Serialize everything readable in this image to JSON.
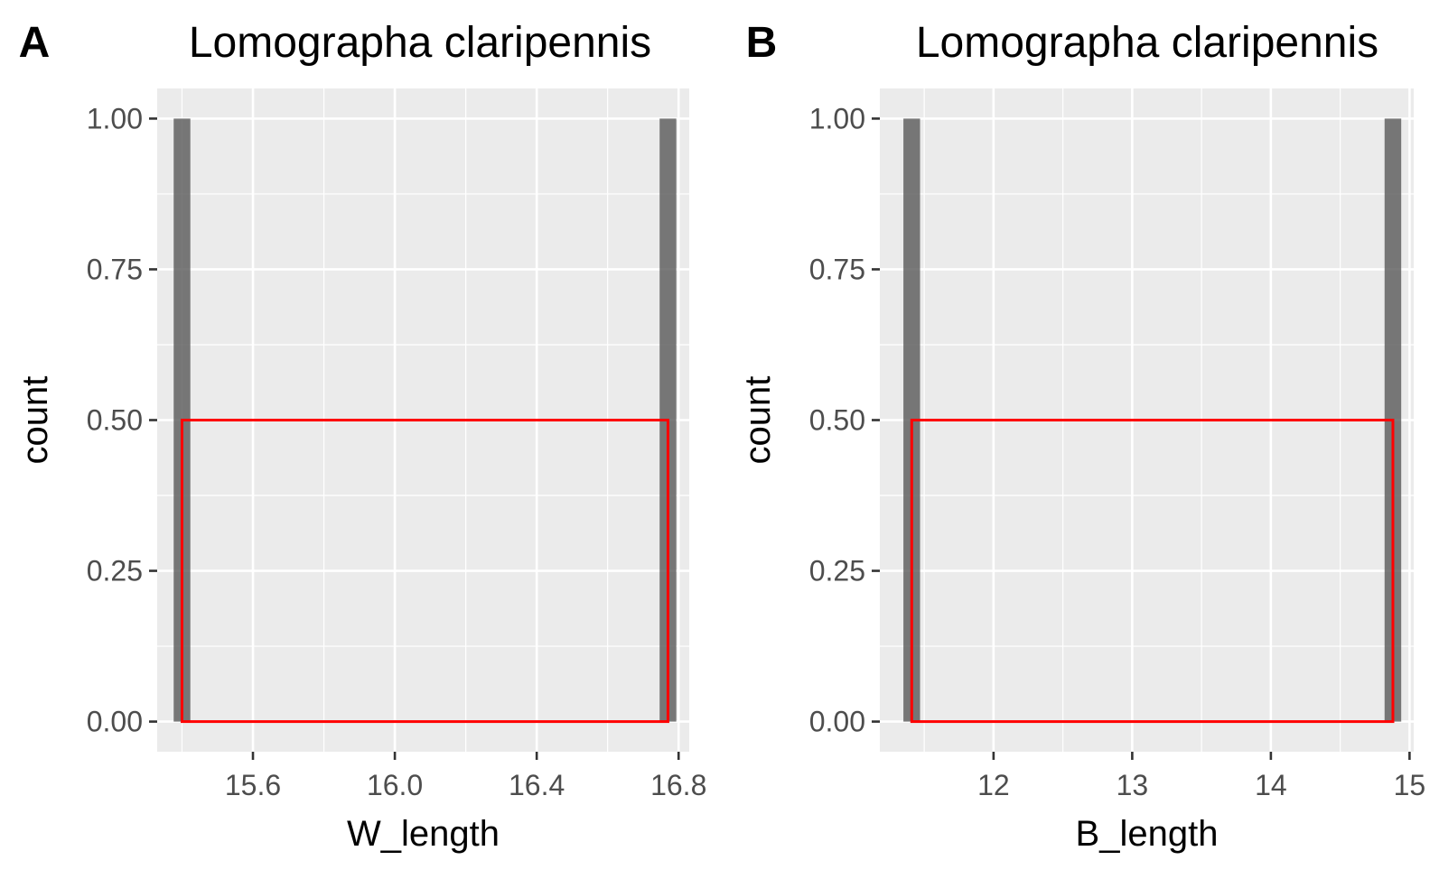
{
  "chart_data": [
    {
      "type": "bar",
      "panel_tag": "A",
      "title": "Lomographa claripennis",
      "xlabel": "W_length",
      "ylabel": "count",
      "xlim": [
        15.33,
        16.83
      ],
      "ylim": [
        -0.05,
        1.05
      ],
      "xticks": [
        15.6,
        16.0,
        16.4,
        16.8
      ],
      "xtick_labels": [
        "15.6",
        "16.0",
        "16.4",
        "16.8"
      ],
      "yticks": [
        0,
        0.25,
        0.5,
        0.75,
        1.0
      ],
      "ytick_labels": [
        "0.00",
        "0.25",
        "0.50",
        "0.75",
        "1.00"
      ],
      "grid": true,
      "bars": [
        {
          "x": 15.4,
          "count": 1
        },
        {
          "x": 16.77,
          "count": 1
        }
      ],
      "bar_width": 0.047,
      "bar_color": "#595959",
      "highlight_box": {
        "x0": 15.4,
        "x1": 16.77,
        "y0": 0,
        "y1": 0.5,
        "color": "#ff0000"
      }
    },
    {
      "type": "bar",
      "panel_tag": "B",
      "title": "Lomographa claripennis",
      "xlabel": "B_length",
      "ylabel": "count",
      "xlim": [
        11.18,
        15.03
      ],
      "ylim": [
        -0.05,
        1.05
      ],
      "xticks": [
        12,
        13,
        14,
        15
      ],
      "xtick_labels": [
        "12",
        "13",
        "14",
        "15"
      ],
      "yticks": [
        0,
        0.25,
        0.5,
        0.75,
        1.0
      ],
      "ytick_labels": [
        "0.00",
        "0.25",
        "0.50",
        "0.75",
        "1.00"
      ],
      "grid": true,
      "bars": [
        {
          "x": 11.41,
          "count": 1
        },
        {
          "x": 14.88,
          "count": 1
        }
      ],
      "bar_width": 0.12,
      "bar_color": "#595959",
      "highlight_box": {
        "x0": 11.41,
        "x1": 14.88,
        "y0": 0,
        "y1": 0.5,
        "color": "#ff0000"
      }
    }
  ]
}
